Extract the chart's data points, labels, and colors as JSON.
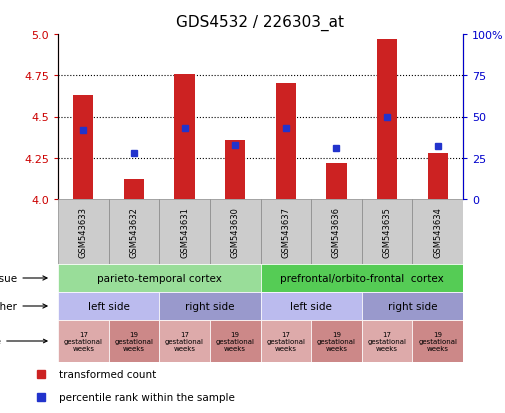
{
  "title": "GDS4532 / 226303_at",
  "samples": [
    "GSM543633",
    "GSM543632",
    "GSM543631",
    "GSM543630",
    "GSM543637",
    "GSM543636",
    "GSM543635",
    "GSM543634"
  ],
  "bar_values": [
    4.63,
    4.12,
    4.76,
    4.36,
    4.7,
    4.22,
    4.97,
    4.28
  ],
  "dot_percentile": [
    42,
    28,
    43,
    33,
    43,
    31,
    50,
    32
  ],
  "ylim": [
    4.0,
    5.0
  ],
  "yticks_left": [
    4.0,
    4.25,
    4.5,
    4.75,
    5.0
  ],
  "yticks_right": [
    0,
    25,
    50,
    75,
    100
  ],
  "bar_color": "#cc2222",
  "dot_color": "#2233cc",
  "bar_baseline": 4.0,
  "hlines": [
    4.25,
    4.5,
    4.75
  ],
  "tissue_groups": [
    {
      "label": "parieto-temporal cortex",
      "start": 0,
      "end": 4,
      "color": "#99dd99"
    },
    {
      "label": "prefrontal/orbito-frontal  cortex",
      "start": 4,
      "end": 8,
      "color": "#55cc55"
    }
  ],
  "other_groups": [
    {
      "label": "left side",
      "start": 0,
      "end": 2,
      "color": "#bbbbee"
    },
    {
      "label": "right side",
      "start": 2,
      "end": 4,
      "color": "#9999cc"
    },
    {
      "label": "left side",
      "start": 4,
      "end": 6,
      "color": "#bbbbee"
    },
    {
      "label": "right side",
      "start": 6,
      "end": 8,
      "color": "#9999cc"
    }
  ],
  "dev_groups": [
    {
      "label": "17\ngestational\nweeks",
      "start": 0,
      "end": 1,
      "color": "#ddaaaa"
    },
    {
      "label": "19\ngestational\nweeks",
      "start": 1,
      "end": 2,
      "color": "#cc8888"
    },
    {
      "label": "17\ngestational\nweeks",
      "start": 2,
      "end": 3,
      "color": "#ddaaaa"
    },
    {
      "label": "19\ngestational\nweeks",
      "start": 3,
      "end": 4,
      "color": "#cc8888"
    },
    {
      "label": "17\ngestational\nweeks",
      "start": 4,
      "end": 5,
      "color": "#ddaaaa"
    },
    {
      "label": "19\ngestational\nweeks",
      "start": 5,
      "end": 6,
      "color": "#cc8888"
    },
    {
      "label": "17\ngestational\nweeks",
      "start": 6,
      "end": 7,
      "color": "#ddaaaa"
    },
    {
      "label": "19\ngestational\nweeks",
      "start": 7,
      "end": 8,
      "color": "#cc8888"
    }
  ],
  "legend_items": [
    {
      "label": "transformed count",
      "color": "#cc2222"
    },
    {
      "label": "percentile rank within the sample",
      "color": "#2233cc"
    }
  ],
  "tick_color_left": "#cc0000",
  "tick_color_right": "#0000cc",
  "sample_box_color": "#cccccc",
  "background_color": "#ffffff"
}
